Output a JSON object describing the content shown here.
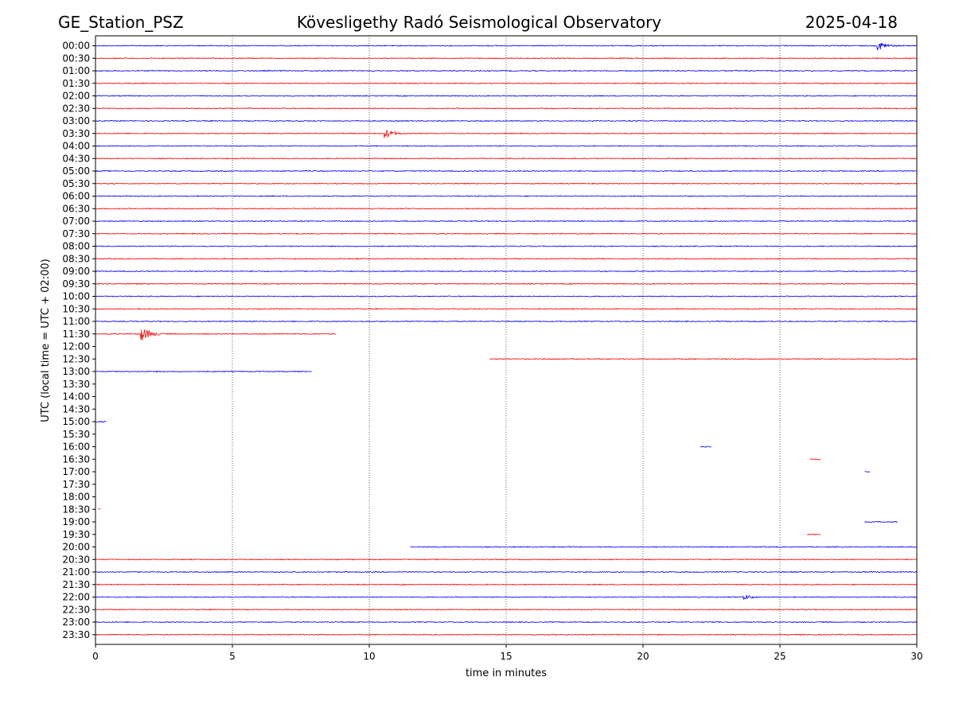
{
  "header": {
    "station": "GE_Station_PSZ",
    "observatory": "Kövesligethy Radó Seismological Observatory",
    "date": "2025-04-18"
  },
  "chart_data": {
    "type": "line",
    "title": "Kövesligethy Radó Seismological Observatory",
    "xlabel": "time in minutes",
    "ylabel": "UTC (local time = UTC + 02:00)",
    "xlim": [
      0,
      30
    ],
    "x_ticks": [
      "0",
      "5",
      "10",
      "15",
      "20",
      "25",
      "30"
    ],
    "grid": "vertical-dotted",
    "colors": {
      "even_rows": "#0000ff",
      "odd_rows": "#ff0000"
    },
    "row_labels": [
      "00:00",
      "00:30",
      "01:00",
      "01:30",
      "02:00",
      "02:30",
      "03:00",
      "03:30",
      "04:00",
      "04:30",
      "05:00",
      "05:30",
      "06:00",
      "06:30",
      "07:00",
      "07:30",
      "08:00",
      "08:30",
      "09:00",
      "09:30",
      "10:00",
      "10:30",
      "11:00",
      "11:30",
      "12:00",
      "12:30",
      "13:00",
      "13:30",
      "14:00",
      "14:30",
      "15:00",
      "15:30",
      "16:00",
      "16:30",
      "17:00",
      "17:30",
      "18:00",
      "18:30",
      "19:00",
      "19:30",
      "20:00",
      "20:30",
      "21:00",
      "21:30",
      "22:00",
      "22:30",
      "23:00",
      "23:30"
    ],
    "traces": [
      {
        "row": "00:00",
        "segments": [
          [
            0,
            30
          ]
        ],
        "events": [
          {
            "minute": 28.6,
            "amplitude": "medium"
          }
        ]
      },
      {
        "row": "00:30",
        "segments": [
          [
            0,
            30
          ]
        ],
        "events": []
      },
      {
        "row": "01:00",
        "segments": [
          [
            0,
            30
          ]
        ],
        "events": []
      },
      {
        "row": "01:30",
        "segments": [
          [
            0,
            30
          ]
        ],
        "events": []
      },
      {
        "row": "02:00",
        "segments": [
          [
            0,
            30
          ]
        ],
        "events": []
      },
      {
        "row": "02:30",
        "segments": [
          [
            0,
            30
          ]
        ],
        "events": []
      },
      {
        "row": "03:00",
        "segments": [
          [
            0,
            30
          ]
        ],
        "events": []
      },
      {
        "row": "03:30",
        "segments": [
          [
            0,
            30
          ]
        ],
        "events": [
          {
            "minute": 10.6,
            "amplitude": "medium"
          }
        ]
      },
      {
        "row": "04:00",
        "segments": [
          [
            0,
            30
          ]
        ],
        "events": []
      },
      {
        "row": "04:30",
        "segments": [
          [
            0,
            30
          ]
        ],
        "events": []
      },
      {
        "row": "05:00",
        "segments": [
          [
            0,
            30
          ]
        ],
        "events": []
      },
      {
        "row": "05:30",
        "segments": [
          [
            0,
            30
          ]
        ],
        "events": []
      },
      {
        "row": "06:00",
        "segments": [
          [
            0,
            30
          ]
        ],
        "events": []
      },
      {
        "row": "06:30",
        "segments": [
          [
            0,
            30
          ]
        ],
        "events": []
      },
      {
        "row": "07:00",
        "segments": [
          [
            0,
            30
          ]
        ],
        "events": []
      },
      {
        "row": "07:30",
        "segments": [
          [
            0,
            30
          ]
        ],
        "events": []
      },
      {
        "row": "08:00",
        "segments": [
          [
            0,
            30
          ]
        ],
        "events": []
      },
      {
        "row": "08:30",
        "segments": [
          [
            0,
            30
          ]
        ],
        "events": []
      },
      {
        "row": "09:00",
        "segments": [
          [
            0,
            30
          ]
        ],
        "events": []
      },
      {
        "row": "09:30",
        "segments": [
          [
            0,
            30
          ]
        ],
        "events": []
      },
      {
        "row": "10:00",
        "segments": [
          [
            0,
            30
          ]
        ],
        "events": []
      },
      {
        "row": "10:30",
        "segments": [
          [
            0,
            30
          ]
        ],
        "events": []
      },
      {
        "row": "11:00",
        "segments": [
          [
            0,
            30
          ]
        ],
        "events": []
      },
      {
        "row": "11:30",
        "segments": [
          [
            0,
            8.8
          ]
        ],
        "events": [
          {
            "minute": 1.7,
            "amplitude": "large"
          }
        ]
      },
      {
        "row": "12:00",
        "segments": [],
        "events": []
      },
      {
        "row": "12:30",
        "segments": [
          [
            14.4,
            30
          ]
        ],
        "events": []
      },
      {
        "row": "13:00",
        "segments": [
          [
            0,
            7.9
          ]
        ],
        "events": []
      },
      {
        "row": "13:30",
        "segments": [],
        "events": []
      },
      {
        "row": "14:00",
        "segments": [],
        "events": []
      },
      {
        "row": "14:30",
        "segments": [],
        "events": []
      },
      {
        "row": "15:00",
        "segments": [
          [
            0,
            0.4
          ]
        ],
        "events": []
      },
      {
        "row": "15:30",
        "segments": [],
        "events": []
      },
      {
        "row": "16:00",
        "segments": [
          [
            22.1,
            22.5
          ]
        ],
        "events": []
      },
      {
        "row": "16:30",
        "segments": [
          [
            26.1,
            26.5
          ]
        ],
        "events": []
      },
      {
        "row": "17:00",
        "segments": [
          [
            28.1,
            28.3
          ]
        ],
        "events": []
      },
      {
        "row": "17:30",
        "segments": [],
        "events": []
      },
      {
        "row": "18:00",
        "segments": [],
        "events": []
      },
      {
        "row": "18:30",
        "segments": [
          [
            0.1,
            0.2
          ]
        ],
        "events": []
      },
      {
        "row": "19:00",
        "segments": [
          [
            28.1,
            29.3
          ]
        ],
        "events": []
      },
      {
        "row": "19:30",
        "segments": [
          [
            26.0,
            26.5
          ]
        ],
        "events": []
      },
      {
        "row": "20:00",
        "segments": [
          [
            11.5,
            30
          ]
        ],
        "events": []
      },
      {
        "row": "20:30",
        "segments": [
          [
            0,
            30
          ]
        ],
        "events": []
      },
      {
        "row": "21:00",
        "segments": [
          [
            0,
            30
          ]
        ],
        "events": []
      },
      {
        "row": "21:30",
        "segments": [
          [
            0,
            30
          ]
        ],
        "events": []
      },
      {
        "row": "22:00",
        "segments": [
          [
            0,
            30
          ]
        ],
        "events": [
          {
            "minute": 23.7,
            "amplitude": "small"
          }
        ]
      },
      {
        "row": "22:30",
        "segments": [
          [
            0,
            30
          ]
        ],
        "events": []
      },
      {
        "row": "23:00",
        "segments": [
          [
            0,
            30
          ]
        ],
        "events": []
      },
      {
        "row": "23:30",
        "segments": [
          [
            0,
            30
          ]
        ],
        "events": []
      }
    ]
  }
}
